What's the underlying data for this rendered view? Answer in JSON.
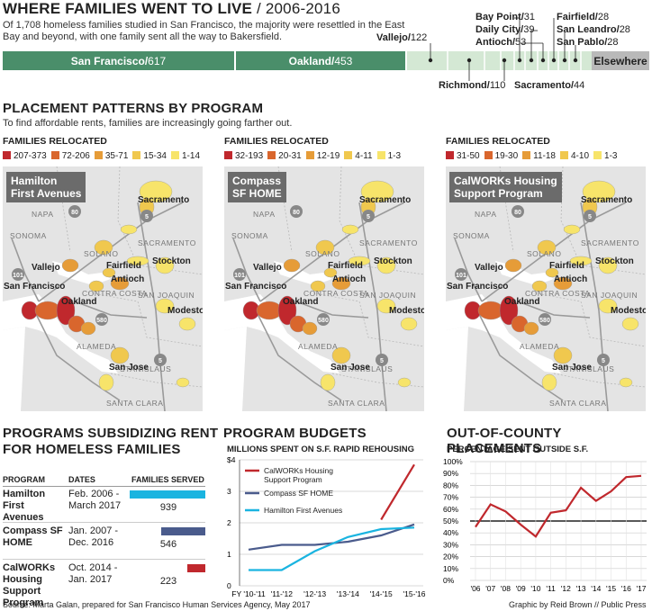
{
  "header": {
    "title_main": "WHERE FAMILIES WENT TO LIVE",
    "title_range": "/ 2006-2016",
    "description": "Of 1,708 homeless families studied in San Francisco, the majority were resettled in the East Bay and beyond, with one family sent all the way to Bakersfield."
  },
  "destinations": {
    "bar": [
      {
        "name": "San Francisco",
        "value": 617,
        "color": "#4a8e6a"
      },
      {
        "name": "Oakland",
        "value": 453,
        "color": "#4a8e6a"
      },
      {
        "name": "Elsewhere",
        "value": 0,
        "color": "#b9b9b9"
      }
    ],
    "other_cities": [
      {
        "name": "Vallejo",
        "value": 122
      },
      {
        "name": "Richmond",
        "value": 110
      },
      {
        "name": "Bay Point",
        "value": 31
      },
      {
        "name": "Daily City",
        "value": 39
      },
      {
        "name": "Antioch",
        "value": 53
      },
      {
        "name": "Sacramento",
        "value": 44
      },
      {
        "name": "Fairfield",
        "value": 28
      },
      {
        "name": "San Leandro",
        "value": 28
      },
      {
        "name": "San Pablo",
        "value": 28
      }
    ]
  },
  "placement": {
    "title": "PLACEMENT PATTERNS BY PROGRAM",
    "subtitle": "To find affordable rents, families are increasingly going farther out.",
    "legend_title": "FAMILIES RELOCATED",
    "colors": [
      "#c0282d",
      "#d9662d",
      "#e69c38",
      "#f0c84e",
      "#f7e46a"
    ],
    "maps": [
      {
        "program_line1": "Hamilton",
        "program_line2": "First Avenues",
        "legend": [
          "207-373",
          "72-206",
          "35-71",
          "15-34",
          "1-14"
        ]
      },
      {
        "program_line1": "Compass",
        "program_line2": "SF HOME",
        "legend": [
          "32-193",
          "20-31",
          "12-19",
          "4-11",
          "1-3"
        ]
      },
      {
        "program_line1": "CalWORKs Housing",
        "program_line2": "Support Program",
        "legend": [
          "31-50",
          "19-30",
          "11-18",
          "4-10",
          "1-3"
        ]
      }
    ],
    "map_labels": {
      "napa": "NAPA",
      "sonoma": "SONOMA",
      "solano": "SOLANO",
      "sacramento_county": "SACRAMENTO",
      "contra_costa": "CONTRA COSTA",
      "san_joaquin": "SAN JOAQUIN",
      "alameda": "ALAMEDA",
      "stanislaus": "STANISLAUS",
      "santa_clara": "SANTA CLARA",
      "sacramento": "Sacramento",
      "fairfield": "Fairfield",
      "vallejo": "Vallejo",
      "stockton": "Stockton",
      "antioch": "Antioch",
      "san_francisco": "San Francisco",
      "oakland": "Oakland",
      "modesto": "Modesto",
      "san_jose": "San Jose",
      "hwy80": "80",
      "hwy101": "101",
      "hwy5": "5",
      "hwy580": "580"
    }
  },
  "programs": {
    "title_line1": "PROGRAMS SUBSIDIZING RENT",
    "title_line2": "FOR HOMELESS FAMILIES",
    "col_program": "PROGRAM",
    "col_dates": "DATES",
    "col_served": "FAMILIES SERVED",
    "rows": [
      {
        "name": "Hamilton First Avenues",
        "dates": "Feb. 2006 - March 2017",
        "served": 939,
        "color": "#1ab4e0"
      },
      {
        "name": "Compass SF HOME",
        "dates": "Jan. 2007 - Dec. 2016",
        "served": 546,
        "color": "#4a5b8c"
      },
      {
        "name": "CalWORKs Housing Support Program",
        "dates": "Oct. 2014 - Jan. 2017",
        "served": 223,
        "color": "#c0282d"
      }
    ]
  },
  "chart_data": [
    {
      "type": "line",
      "title": "PROGRAM BUDGETS",
      "subtitle": "MILLIONS SPENT ON S.F. RAPID REHOUSING",
      "x": [
        "FY '10-'11",
        "'11-'12",
        "'12-'13",
        "'13-'14",
        "'14-'15",
        "'15-'16"
      ],
      "y_ticks": [
        "$4",
        "3",
        "2",
        "1",
        "0"
      ],
      "ylim": [
        0,
        4
      ],
      "series": [
        {
          "name": "CalWORKs Housing Support Program",
          "color": "#c0282d",
          "values": [
            null,
            null,
            null,
            null,
            2.1,
            3.85
          ]
        },
        {
          "name": "Compass SF HOME",
          "color": "#4a5b8c",
          "values": [
            1.15,
            1.3,
            1.3,
            1.4,
            1.6,
            1.95
          ]
        },
        {
          "name": "Hamilton First Avenues",
          "color": "#1ab4e0",
          "values": [
            0.5,
            0.5,
            1.1,
            1.55,
            1.8,
            1.85
          ]
        }
      ]
    },
    {
      "type": "line",
      "title": "OUT-OF-COUNTY PLACEMENTS",
      "subtitle": "PERCENTAGE SENT OUTSIDE S.F.",
      "x": [
        "'06",
        "'07",
        "'08",
        "'09",
        "'10",
        "'11",
        "'12",
        "'13",
        "'14",
        "'15",
        "'16",
        "'17"
      ],
      "ylim": [
        0,
        100
      ],
      "y_ticks": [
        "100%",
        "90%",
        "80%",
        "70%",
        "60%",
        "50%",
        "40%",
        "30%",
        "20%",
        "10%",
        "0%"
      ],
      "series": [
        {
          "name": "",
          "color": "#c0282d",
          "values": [
            45,
            64,
            58,
            47,
            37,
            57,
            59,
            78,
            67,
            75,
            87,
            88
          ]
        }
      ]
    }
  ],
  "footer": {
    "source": "Source: Marta Galan, prepared for San Francisco Human Services Agency, May 2017",
    "credit": "Graphic by Reid Brown // Public Press"
  }
}
